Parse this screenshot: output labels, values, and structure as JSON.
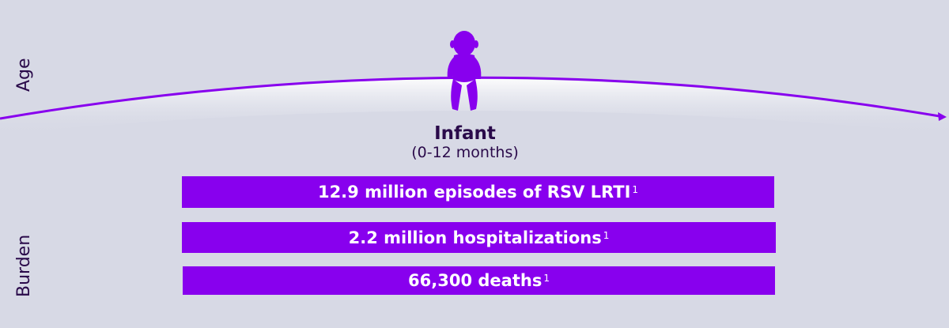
{
  "axes": {
    "age_label": "Age",
    "burden_label": "Burden"
  },
  "stage": {
    "title": "Infant",
    "subtitle": "(0-12 months)",
    "icon": "infant-icon"
  },
  "colors": {
    "accent": "#8800ee",
    "background": "#d7d9e5",
    "text": "#2a0a4a"
  },
  "bars": [
    {
      "label": "12.9 million episodes of RSV LRTI",
      "ref": "1"
    },
    {
      "label": "2.2 million hospitalizations",
      "ref": "1"
    },
    {
      "label": "66,300 deaths",
      "ref": "1"
    }
  ]
}
